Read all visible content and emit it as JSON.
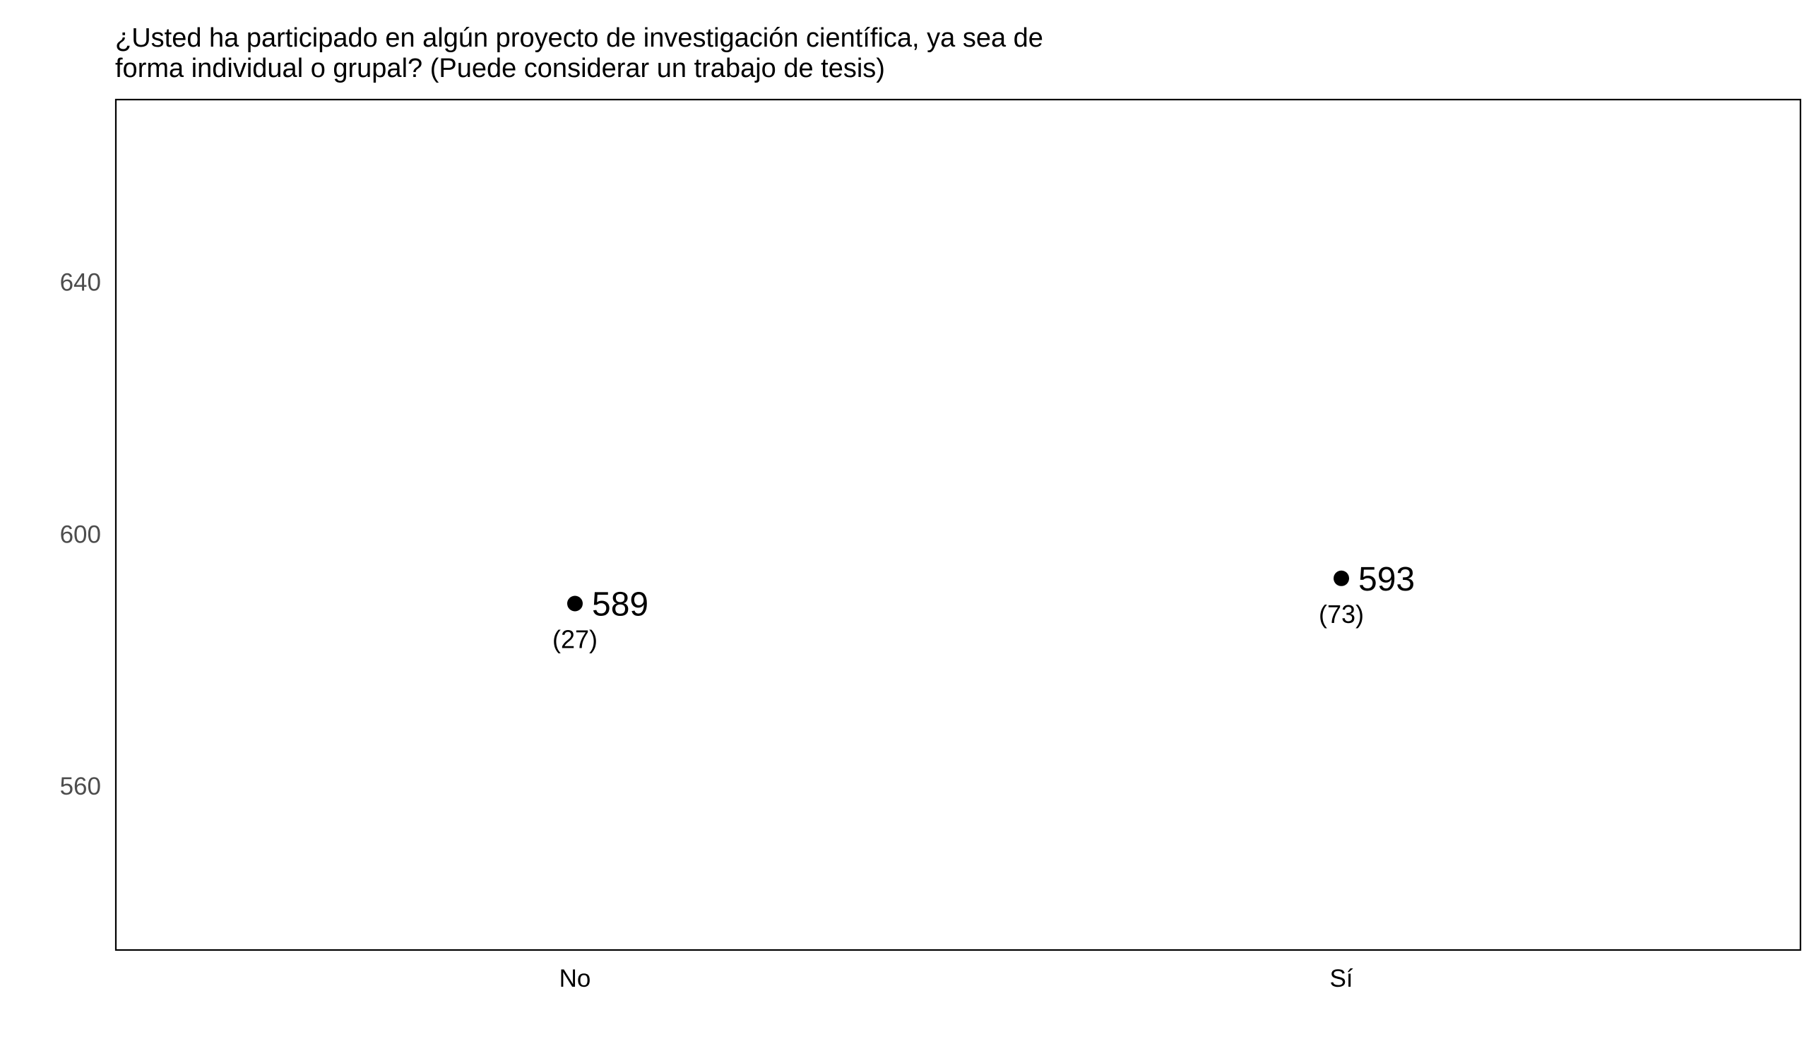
{
  "chart_data": {
    "type": "scatter",
    "title": "¿Usted ha participado en algún proyecto de investigación científica, ya sea de forma individual o grupal? (Puede considerar un trabajo de tesis)",
    "title_lines": [
      "¿Usted ha participado en algún proyecto de investigación científica, ya sea de",
      "forma individual o grupal? (Puede considerar un trabajo de tesis)"
    ],
    "xlabel": "",
    "ylabel": "",
    "categories": [
      "No",
      "Sí"
    ],
    "points": [
      {
        "category": "No",
        "value": 589,
        "value_label": "589",
        "count_label": "(27)"
      },
      {
        "category": "Sí",
        "value": 593,
        "value_label": "593",
        "count_label": "(73)"
      }
    ],
    "yticks": [
      560,
      600,
      640
    ],
    "ytick_labels": [
      "560",
      "600",
      "640"
    ],
    "ylim": [
      534,
      669
    ],
    "grid": false,
    "legend": "none",
    "colors": {
      "point": "#000000",
      "frame": "#000000",
      "tick_text": "#4d4d4d"
    }
  }
}
